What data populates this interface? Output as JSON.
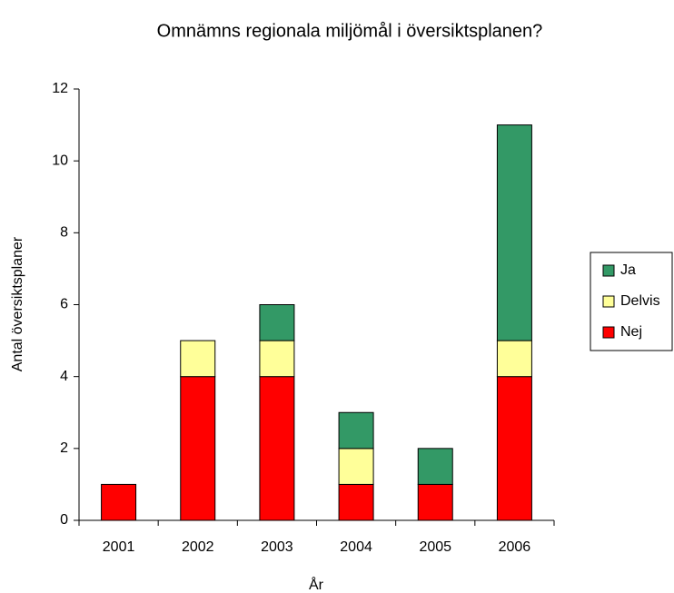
{
  "chart_data": {
    "type": "stacked-bar",
    "title": "Omnämns regionala miljömål i översiktsplanen?",
    "x_label": "År",
    "y_label": "Antal översiktsplaner",
    "categories": [
      "2001",
      "2002",
      "2003",
      "2004",
      "2005",
      "2006"
    ],
    "series": [
      {
        "name": "Nej",
        "color": "#ff0000",
        "values": [
          1,
          4,
          4,
          1,
          1,
          4
        ]
      },
      {
        "name": "Delvis",
        "color": "#ffff99",
        "values": [
          0,
          1,
          1,
          1,
          0,
          1
        ]
      },
      {
        "name": "Ja",
        "color": "#339966",
        "values": [
          0,
          0,
          1,
          1,
          1,
          6
        ]
      }
    ],
    "ylim": [
      0,
      12
    ],
    "yticks": [
      0,
      2,
      4,
      6,
      8,
      10,
      12
    ],
    "grid": false,
    "legend": "right"
  }
}
